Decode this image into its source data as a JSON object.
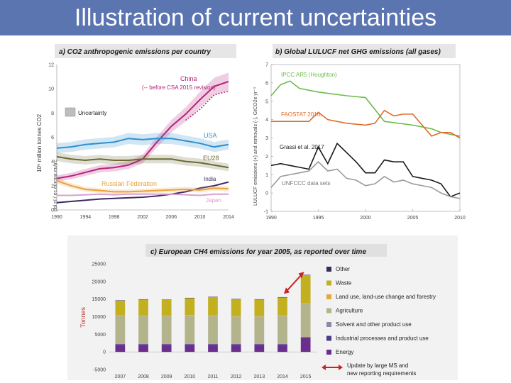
{
  "slide": {
    "title": "Illustration of current uncertainties"
  },
  "chart_data": [
    {
      "type": "line",
      "title": "a) CO2 anthropogenic emissions per country",
      "ylabel": "10⁹ million tonnes CO2",
      "source": "pbl.nl / ec.europa.eu/jrc",
      "ylim": [
        0,
        12
      ],
      "xlim": [
        1990,
        2014
      ],
      "x_ticks": [
        "1990",
        "1994",
        "1998",
        "2002",
        "2006",
        "2010",
        "2014"
      ],
      "y_ticks": [
        "0",
        "2",
        "4",
        "6",
        "8",
        "10",
        "12"
      ],
      "legend": {
        "label": "Uncertainty",
        "color": "#bdbdbd"
      },
      "series": [
        {
          "name": "China",
          "color": "#b5227c",
          "band": true,
          "x": [
            1990,
            1992,
            1994,
            1996,
            1998,
            2000,
            2002,
            2004,
            2006,
            2008,
            2010,
            2012,
            2014
          ],
          "y": [
            2.6,
            2.8,
            3.1,
            3.4,
            3.5,
            3.7,
            4.2,
            5.6,
            6.9,
            7.9,
            9.1,
            10.2,
            10.6
          ]
        },
        {
          "name": "(-- before CSA 2015 revision)",
          "color": "#b5227c",
          "dashed": true,
          "x": [
            2008,
            2010,
            2012,
            2014
          ],
          "y": [
            7.4,
            8.3,
            9.5,
            9.8
          ]
        },
        {
          "name": "USA",
          "color": "#2e8fcf",
          "band": true,
          "x": [
            1990,
            1992,
            1994,
            1996,
            1998,
            2000,
            2002,
            2004,
            2006,
            2008,
            2010,
            2012,
            2014
          ],
          "y": [
            5.1,
            5.2,
            5.4,
            5.5,
            5.6,
            5.9,
            5.8,
            5.9,
            5.9,
            5.7,
            5.5,
            5.2,
            5.4
          ]
        },
        {
          "name": "EU28",
          "color": "#6a6a32",
          "band": true,
          "x": [
            1990,
            1992,
            1994,
            1996,
            1998,
            2000,
            2002,
            2004,
            2006,
            2008,
            2010,
            2012,
            2014
          ],
          "y": [
            4.4,
            4.2,
            4.1,
            4.2,
            4.1,
            4.1,
            4.2,
            4.2,
            4.2,
            4.0,
            3.9,
            3.7,
            3.5
          ]
        },
        {
          "name": "India",
          "color": "#3c2a66",
          "x": [
            1990,
            1992,
            1994,
            1996,
            1998,
            2000,
            2002,
            2004,
            2006,
            2008,
            2010,
            2012,
            2014
          ],
          "y": [
            0.6,
            0.7,
            0.8,
            0.9,
            0.95,
            1.0,
            1.05,
            1.15,
            1.3,
            1.5,
            1.8,
            2.0,
            2.3
          ]
        },
        {
          "name": "Russian Federation",
          "color": "#e8a23a",
          "band": true,
          "x": [
            1990,
            1992,
            1994,
            1996,
            1998,
            2000,
            2002,
            2004,
            2006,
            2008,
            2010,
            2012,
            2014
          ],
          "y": [
            2.4,
            2.0,
            1.7,
            1.6,
            1.5,
            1.5,
            1.55,
            1.6,
            1.65,
            1.7,
            1.65,
            1.8,
            1.75
          ]
        },
        {
          "name": "Japan",
          "color": "#d9a0d0",
          "x": [
            1990,
            1992,
            1994,
            1996,
            1998,
            2000,
            2002,
            2004,
            2006,
            2008,
            2010,
            2012,
            2014
          ],
          "y": [
            1.2,
            1.2,
            1.25,
            1.3,
            1.25,
            1.3,
            1.3,
            1.3,
            1.3,
            1.25,
            1.2,
            1.3,
            1.3
          ]
        }
      ]
    },
    {
      "type": "line",
      "title": "b) Global LULUCF net GHG emissions (all gases)",
      "ylabel": "LULUCF emissions (+) and removals (-), GtCO2e yr⁻¹",
      "ylim": [
        -1,
        7
      ],
      "xlim": [
        1990,
        2010
      ],
      "x_ticks": [
        "1990",
        "1995",
        "2000",
        "2005",
        "2010"
      ],
      "y_ticks": [
        "-1",
        "0",
        "1",
        "2",
        "3",
        "4",
        "5",
        "6",
        "7"
      ],
      "series": [
        {
          "name": "IPCC AR5 (Houghton)",
          "color": "#6dbb4a",
          "x": [
            1990,
            1991,
            1992,
            1993,
            1995,
            1998,
            2000,
            2002,
            2005,
            2007,
            2008,
            2010
          ],
          "y": [
            5.3,
            5.9,
            6.1,
            5.7,
            5.5,
            5.3,
            5.2,
            3.9,
            3.7,
            3.5,
            3.3,
            3.1
          ]
        },
        {
          "name": "FAOSTAT 2016,",
          "color": "#e06b27",
          "x": [
            1990,
            1992,
            1994,
            1995,
            1996,
            1998,
            2000,
            2001,
            2002,
            2003,
            2004,
            2005,
            2007,
            2008,
            2009,
            2010
          ],
          "y": [
            3.9,
            3.9,
            3.9,
            4.4,
            4.0,
            3.8,
            3.7,
            3.8,
            4.5,
            4.2,
            4.3,
            4.3,
            3.1,
            3.3,
            3.3,
            3.0
          ]
        },
        {
          "name": "Grassi et al. 2017",
          "color": "#1a1a1a",
          "x": [
            1990,
            1991,
            1992,
            1993,
            1994,
            1995,
            1996,
            1997,
            1998,
            1999,
            2000,
            2001,
            2002,
            2003,
            2004,
            2005,
            2006,
            2007,
            2008,
            2009,
            2010
          ],
          "y": [
            1.5,
            1.6,
            1.5,
            1.4,
            1.3,
            2.5,
            1.6,
            2.7,
            2.2,
            1.7,
            1.1,
            1.1,
            1.8,
            1.7,
            1.7,
            0.9,
            0.8,
            0.7,
            0.5,
            -0.2,
            0.0
          ]
        },
        {
          "name": "UNFCCC data sets",
          "color": "#9a9a9a",
          "x": [
            1990,
            1991,
            1992,
            1993,
            1994,
            1995,
            1996,
            1997,
            1998,
            1999,
            2000,
            2001,
            2002,
            2003,
            2004,
            2005,
            2006,
            2007,
            2008,
            2009,
            2010
          ],
          "y": [
            0.3,
            0.9,
            1.0,
            1.1,
            1.2,
            1.7,
            1.2,
            1.3,
            0.8,
            0.7,
            0.4,
            0.5,
            0.9,
            0.6,
            0.7,
            0.5,
            0.4,
            0.3,
            0.0,
            -0.2,
            -0.3
          ]
        }
      ]
    },
    {
      "type": "bar",
      "stacked": true,
      "title": "c) European CH4 emissions for year 2005, as reported over time",
      "ylabel": "Tonnes",
      "ylim": [
        -5000,
        25000
      ],
      "y_ticks": [
        "-5000",
        "0",
        "5000",
        "10000",
        "15000",
        "20000",
        "25000"
      ],
      "categories": [
        "2007",
        "2008",
        "2009",
        "2010",
        "2011",
        "2012",
        "2013",
        "2014",
        "2015"
      ],
      "series": [
        {
          "name": "Energy",
          "color": "#6b2d8e",
          "values": [
            2000,
            2000,
            2000,
            2000,
            2000,
            2000,
            2000,
            2000,
            4000
          ]
        },
        {
          "name": "Industrial processes and product use",
          "color": "#4a3a8a",
          "values": [
            200,
            200,
            200,
            200,
            200,
            200,
            200,
            200,
            200
          ]
        },
        {
          "name": "Solvent and other product use",
          "color": "#8a8aa8",
          "values": [
            50,
            50,
            50,
            50,
            50,
            50,
            50,
            50,
            0
          ]
        },
        {
          "name": "Agriculture",
          "color": "#b3b38c",
          "values": [
            8000,
            7900,
            7900,
            8100,
            8000,
            7800,
            7800,
            8000,
            9500
          ]
        },
        {
          "name": "Land use, land-use change and forestry",
          "color": "#e8a838",
          "values": [
            100,
            100,
            100,
            100,
            100,
            100,
            100,
            100,
            100
          ]
        },
        {
          "name": "Waste",
          "color": "#c2b020",
          "values": [
            4200,
            4600,
            4500,
            4800,
            5200,
            4800,
            4700,
            5100,
            8000
          ]
        },
        {
          "name": "Other",
          "color": "#3a2a5a",
          "values": [
            100,
            100,
            100,
            100,
            100,
            100,
            100,
            100,
            100
          ]
        }
      ],
      "annotation": "Update by large MS and\nnew reporting requirements",
      "annotation_lines": [
        "Update by large MS and",
        "new reporting requirements"
      ],
      "annotation_color": "#cc2222"
    }
  ]
}
